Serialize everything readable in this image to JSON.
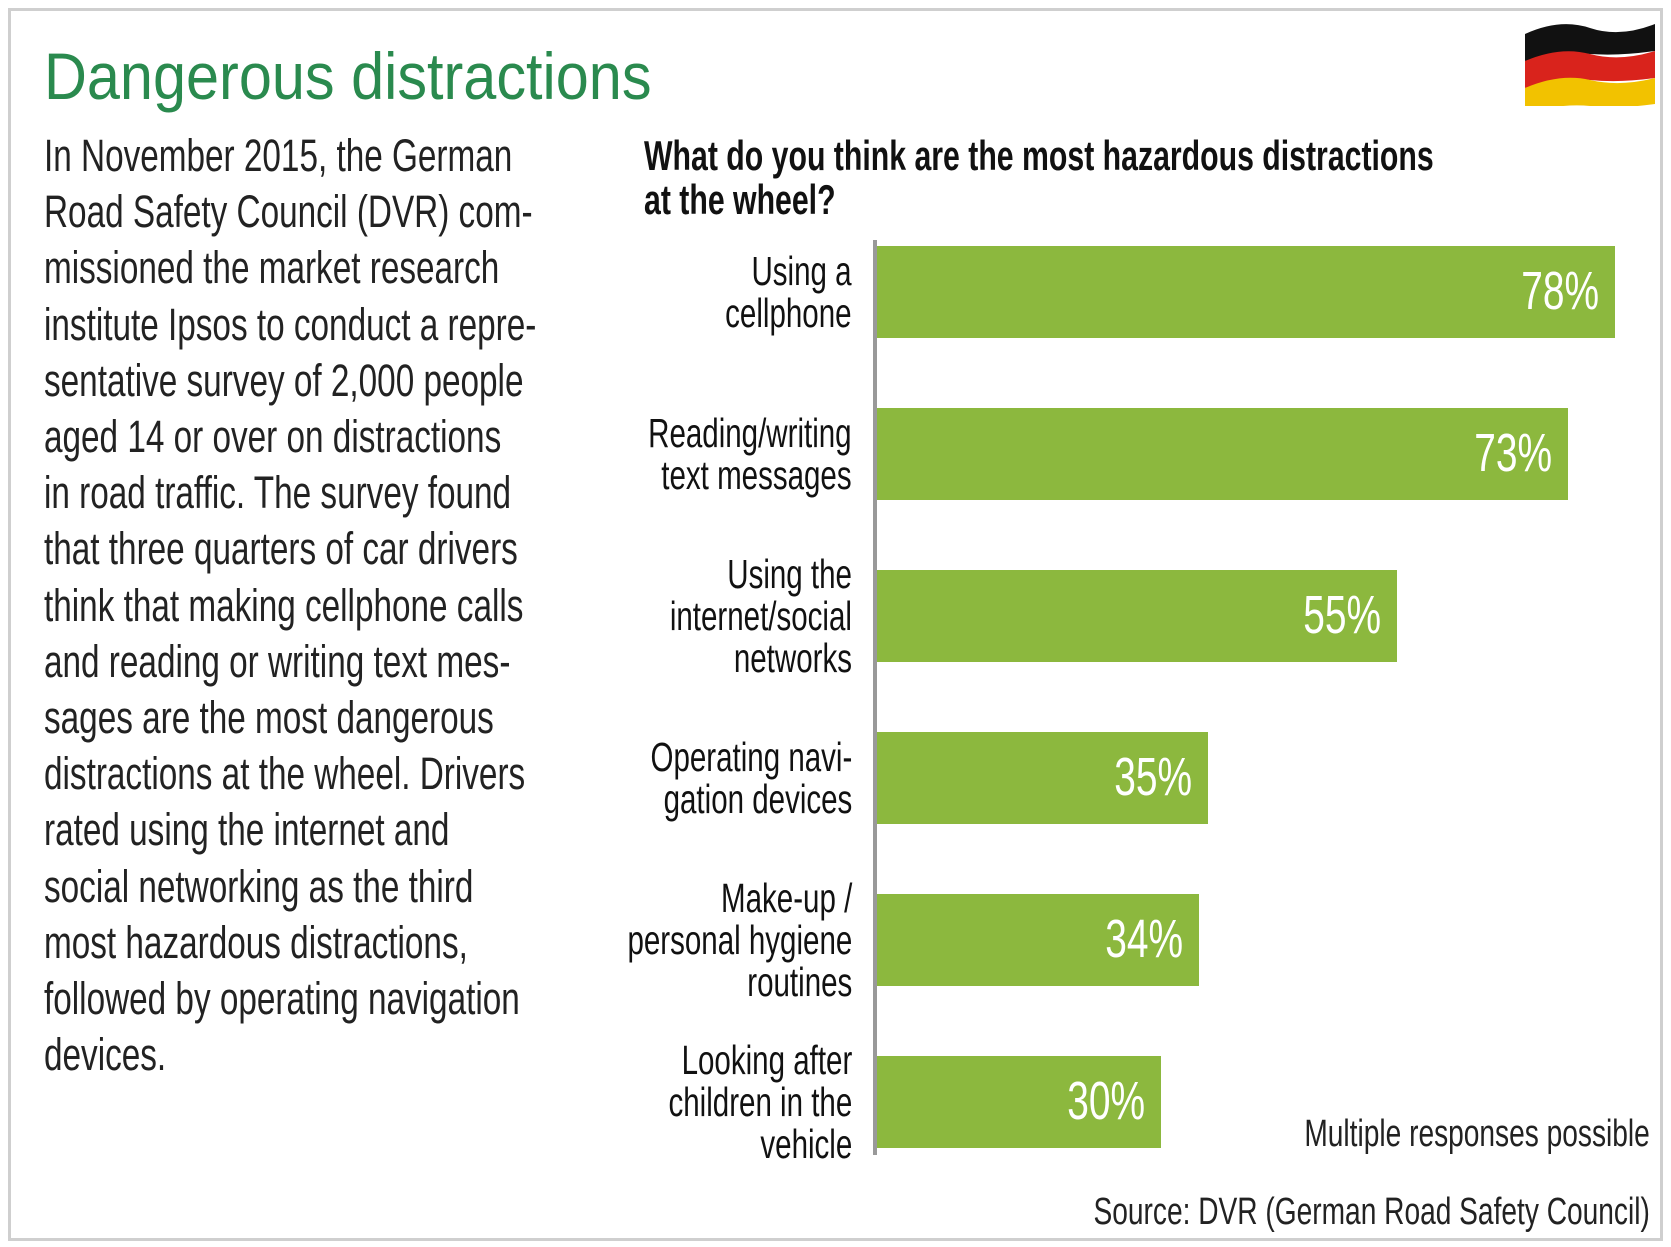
{
  "header": {
    "title": "Dangerous distractions"
  },
  "body": {
    "text": "In November 2015, the German\nRoad Safety Council (DVR) com-\nmissioned the market research\ninstitute Ipsos to conduct a repre-\nsentative survey of 2,000 people\naged 14 or over on distractions\nin road traffic. The survey found\nthat three quarters of car drivers\nthink that making cellphone calls\nand reading or writing text mes-\nsages are the most dangerous\ndistractions at the wheel. Drivers\nrated using the internet and\nsocial networking as the third\nmost hazardous distractions,\nfollowed by operating navigation\ndevices."
  },
  "chart_data": {
    "type": "bar",
    "title": "What do you think are the most hazardous distractions\nat the wheel?",
    "categories": [
      "Using a\ncellphone",
      "Reading/writing\ntext messages",
      "Using the\ninternet/social\nnetworks",
      "Operating navi-\ngation devices",
      "Make-up /\npersonal hygiene\nroutines",
      "Looking after\nchildren in the\nvehicle"
    ],
    "values": [
      78,
      73,
      55,
      35,
      34,
      30
    ],
    "value_labels": [
      "78%",
      "73%",
      "55%",
      "35%",
      "34%",
      "30%"
    ],
    "color": "#8cb83e",
    "xlim": [
      0,
      100
    ],
    "note": "Multiple responses possible",
    "source": "Source: DVR (German Road Safety Council)"
  }
}
